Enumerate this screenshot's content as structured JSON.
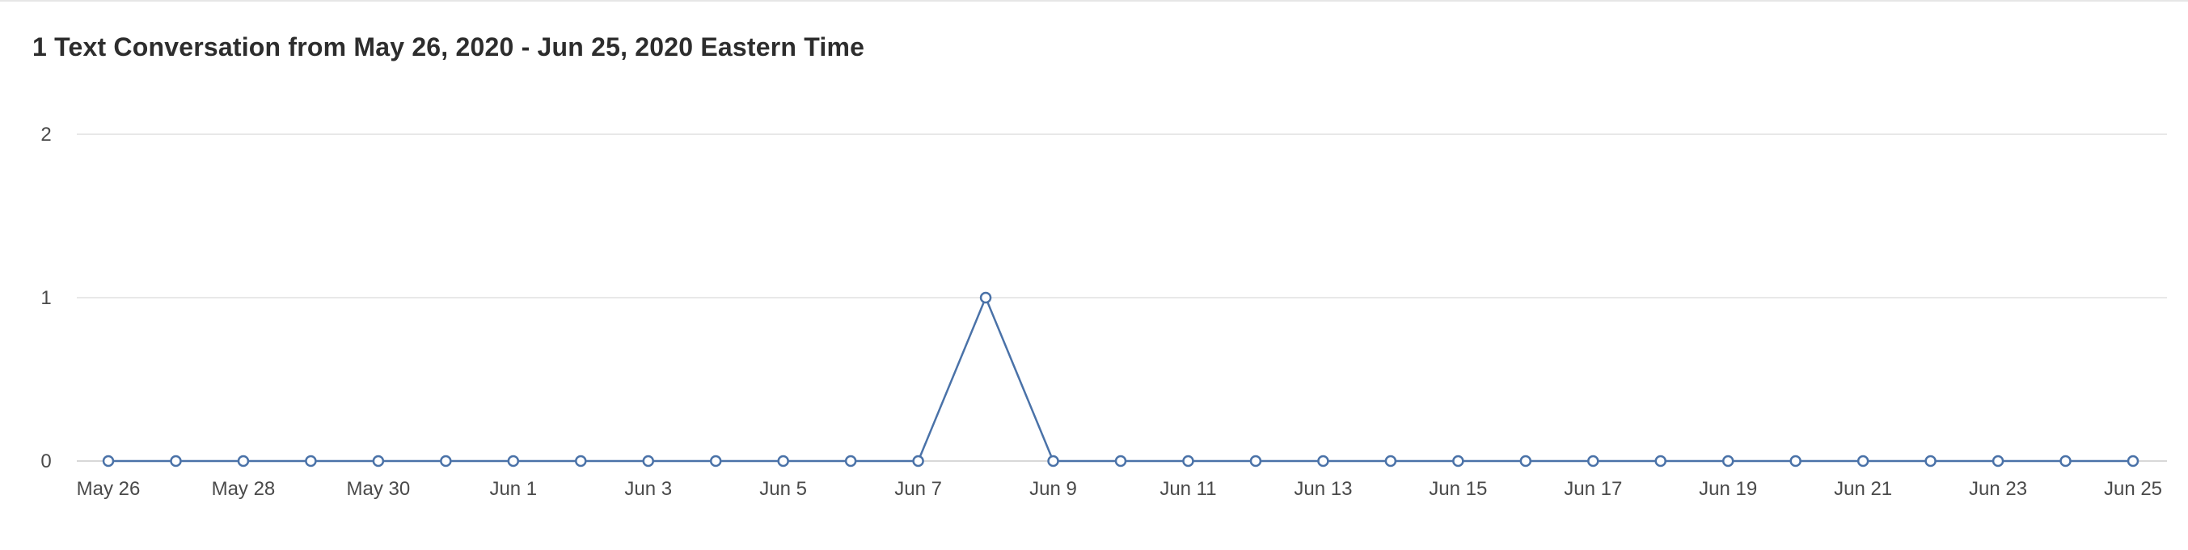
{
  "chart_data": {
    "type": "line",
    "title": "1 Text Conversation from May 26, 2020 - Jun 25, 2020 Eastern Time",
    "xlabel": "",
    "ylabel": "",
    "x": [
      "May 26",
      "May 27",
      "May 28",
      "May 29",
      "May 30",
      "May 31",
      "Jun 1",
      "Jun 2",
      "Jun 3",
      "Jun 4",
      "Jun 5",
      "Jun 6",
      "Jun 7",
      "Jun 8",
      "Jun 9",
      "Jun 10",
      "Jun 11",
      "Jun 12",
      "Jun 13",
      "Jun 14",
      "Jun 15",
      "Jun 16",
      "Jun 17",
      "Jun 18",
      "Jun 19",
      "Jun 20",
      "Jun 21",
      "Jun 22",
      "Jun 23",
      "Jun 24",
      "Jun 25"
    ],
    "x_tick_labels": [
      "May 26",
      "May 28",
      "May 30",
      "Jun 1",
      "Jun 3",
      "Jun 5",
      "Jun 7",
      "Jun 9",
      "Jun 11",
      "Jun 13",
      "Jun 15",
      "Jun 17",
      "Jun 19",
      "Jun 21",
      "Jun 23",
      "Jun 25"
    ],
    "series": [
      {
        "values": [
          0,
          0,
          0,
          0,
          0,
          0,
          0,
          0,
          0,
          0,
          0,
          0,
          0,
          1,
          0,
          0,
          0,
          0,
          0,
          0,
          0,
          0,
          0,
          0,
          0,
          0,
          0,
          0,
          0,
          0,
          0
        ]
      }
    ],
    "y_ticks": [
      0,
      1,
      2
    ],
    "ylim": [
      0,
      2
    ],
    "grid": true,
    "legend": "none",
    "colors": {
      "line": "#4a72a8",
      "grid": "#e8e8e8",
      "axis": "#d8d8d8"
    }
  }
}
